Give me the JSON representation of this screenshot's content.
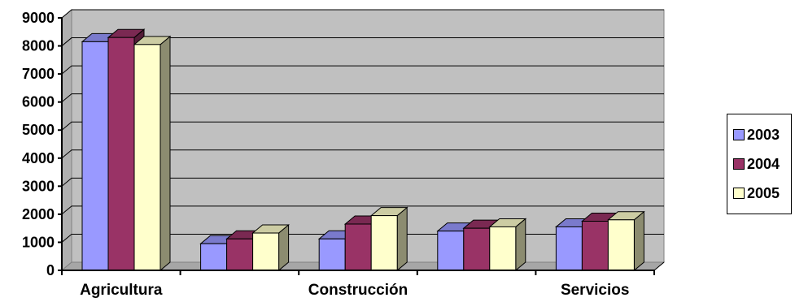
{
  "chart_data": {
    "type": "bar",
    "style": "3d-clustered-column",
    "categories": [
      "Agricultura",
      "",
      "Construcción",
      "",
      "Servicios"
    ],
    "series": [
      {
        "name": "2003",
        "color": "#9999ff",
        "values": [
          8150,
          950,
          1120,
          1400,
          1550
        ]
      },
      {
        "name": "2004",
        "color": "#993366",
        "values": [
          8300,
          1120,
          1650,
          1500,
          1750
        ]
      },
      {
        "name": "2005",
        "color": "#ffffcc",
        "values": [
          8050,
          1330,
          1950,
          1550,
          1800
        ]
      }
    ],
    "ylim": [
      0,
      9000
    ],
    "yticks": [
      "0",
      "1000",
      "2000",
      "3000",
      "4000",
      "5000",
      "6000",
      "7000",
      "8000",
      "9000"
    ],
    "grid": true,
    "legend_position": "right",
    "plot_background": "#c0c0c0"
  }
}
